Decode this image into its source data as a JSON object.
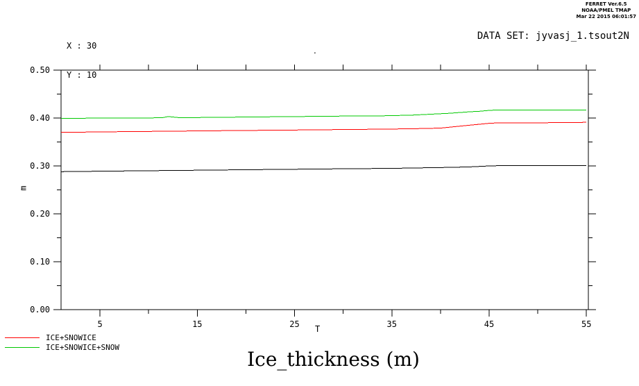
{
  "header": {
    "app_info_lines": [
      "FERRET  Ver.6.5",
      "NOAA/PMEL TMAP",
      "Mar 22 2015 06:01:57"
    ],
    "coord_readout": {
      "x_line": "X : 30",
      "y_line": "Y : 10"
    },
    "dataset_label": "DATA SET: jyvasj_1.tsout2N",
    "stray_dot": "."
  },
  "chart_data": {
    "type": "line",
    "title": "Ice_thickness (m)",
    "xlabel": "T",
    "ylabel": "m",
    "xlim": [
      1,
      55.2
    ],
    "ylim": [
      0.0,
      0.5
    ],
    "grid": false,
    "legend_position": "bottom-left",
    "x_major_ticks": [
      {
        "value": 5,
        "label": "5"
      },
      {
        "value": 15,
        "label": "15"
      },
      {
        "value": 25,
        "label": "25"
      },
      {
        "value": 35,
        "label": "35"
      },
      {
        "value": 45,
        "label": "45"
      },
      {
        "value": 55,
        "label": "55"
      }
    ],
    "x_minor_ticks": [
      10,
      20,
      30,
      40,
      50
    ],
    "x_top_ticks": [
      5,
      10,
      15,
      20,
      25,
      30,
      35,
      40,
      45,
      50,
      55
    ],
    "y_major_ticks": [
      {
        "value": 0.0,
        "label": "0.00"
      },
      {
        "value": 0.1,
        "label": "0.10"
      },
      {
        "value": 0.2,
        "label": "0.20"
      },
      {
        "value": 0.3,
        "label": "0.30"
      },
      {
        "value": 0.4,
        "label": "0.40"
      },
      {
        "value": 0.5,
        "label": "0.50"
      }
    ],
    "y_minor_ticks": [
      0.05,
      0.15,
      0.25,
      0.35,
      0.45
    ],
    "series": [
      {
        "name": "",
        "color": "#000000",
        "points": [
          [
            1,
            0.288
          ],
          [
            5,
            0.289
          ],
          [
            10,
            0.29
          ],
          [
            15,
            0.291
          ],
          [
            20,
            0.292
          ],
          [
            25,
            0.293
          ],
          [
            30,
            0.294
          ],
          [
            35,
            0.295
          ],
          [
            38,
            0.296
          ],
          [
            41,
            0.297
          ],
          [
            43,
            0.298
          ],
          [
            45,
            0.3
          ],
          [
            47,
            0.301
          ],
          [
            55,
            0.301
          ]
        ]
      },
      {
        "name": "ICE+SNOWICE",
        "color": "#ff0000",
        "points": [
          [
            1,
            0.37
          ],
          [
            5,
            0.371
          ],
          [
            10,
            0.372
          ],
          [
            15,
            0.373
          ],
          [
            20,
            0.374
          ],
          [
            25,
            0.375
          ],
          [
            30,
            0.376
          ],
          [
            35,
            0.377
          ],
          [
            38,
            0.378
          ],
          [
            40,
            0.379
          ],
          [
            41,
            0.381
          ],
          [
            42,
            0.383
          ],
          [
            43,
            0.385
          ],
          [
            44,
            0.387
          ],
          [
            45,
            0.389
          ],
          [
            46,
            0.39
          ],
          [
            50,
            0.39
          ],
          [
            55,
            0.391
          ]
        ]
      },
      {
        "name": "ICE+SNOWICE+SNOW",
        "color": "#00c800",
        "points": [
          [
            1,
            0.399
          ],
          [
            5,
            0.4
          ],
          [
            10,
            0.4
          ],
          [
            11.5,
            0.401
          ],
          [
            12,
            0.403
          ],
          [
            13,
            0.401
          ],
          [
            15,
            0.401
          ],
          [
            20,
            0.402
          ],
          [
            25,
            0.403
          ],
          [
            30,
            0.404
          ],
          [
            33,
            0.404
          ],
          [
            35,
            0.405
          ],
          [
            37,
            0.406
          ],
          [
            39,
            0.408
          ],
          [
            41,
            0.41
          ],
          [
            43,
            0.413
          ],
          [
            44,
            0.414
          ],
          [
            45,
            0.416
          ],
          [
            46,
            0.417
          ],
          [
            48,
            0.417
          ],
          [
            55,
            0.417
          ]
        ]
      }
    ],
    "legend": [
      {
        "label": "ICE+SNOWICE",
        "color": "#ff0000"
      },
      {
        "label": "ICE+SNOWICE+SNOW",
        "color": "#00c800"
      }
    ]
  }
}
